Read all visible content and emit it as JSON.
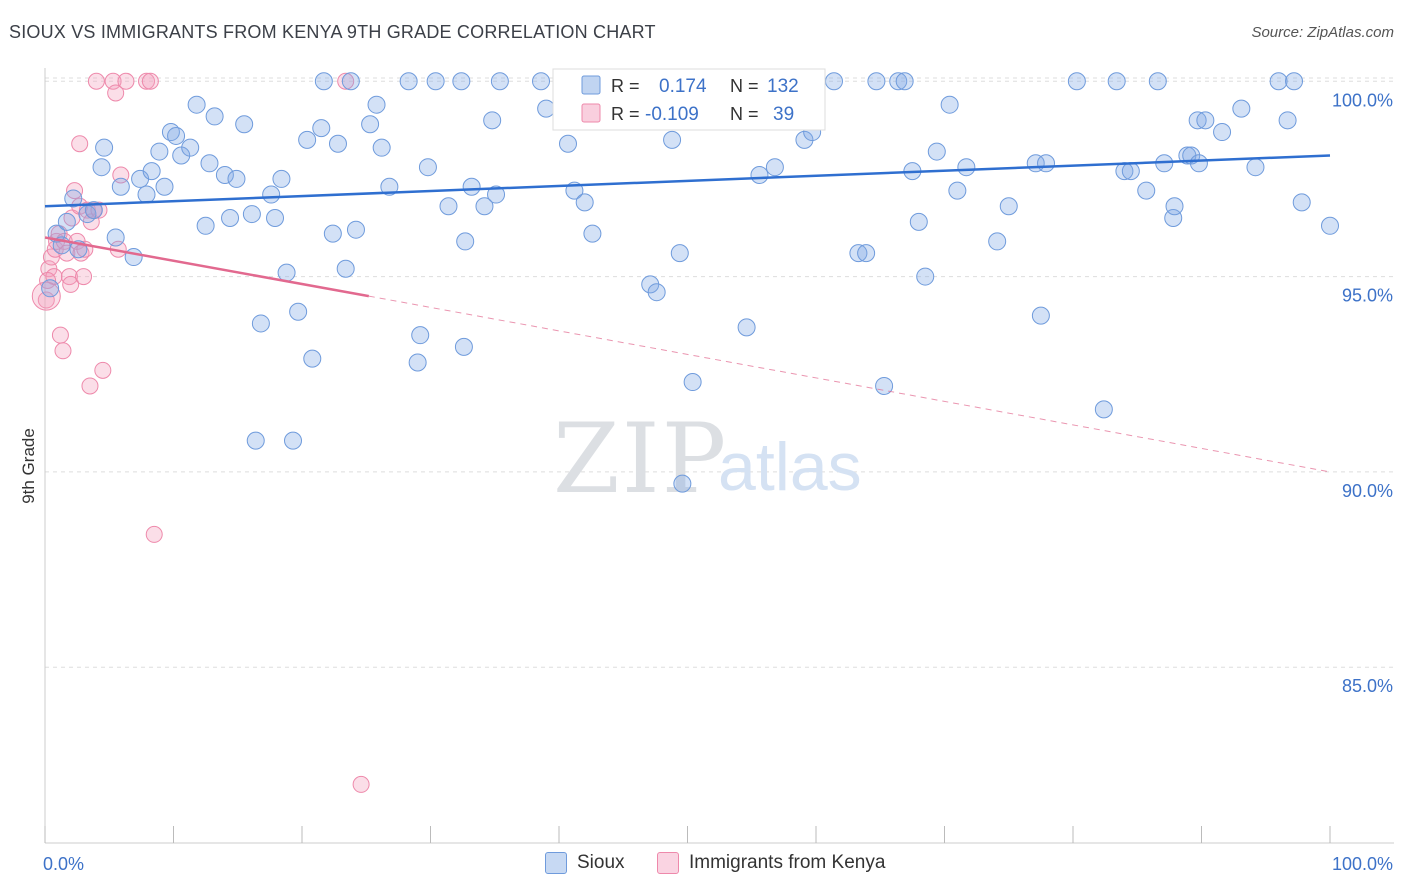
{
  "title": "SIOUX VS IMMIGRANTS FROM KENYA 9TH GRADE CORRELATION CHART",
  "source": "Source: ZipAtlas.com",
  "watermark": {
    "zip": "ZIP",
    "atlas": "atlas"
  },
  "colors": {
    "sioux_fill": "rgba(130,170,228,0.35)",
    "sioux_stroke": "#6f9bdc",
    "sioux_line": "#2f6fd0",
    "kenya_fill": "rgba(244,160,190,0.35)",
    "kenya_stroke": "#ee89ab",
    "kenya_line": "#e2698f",
    "axis_text": "#3d72c8",
    "grid": "#dddddd"
  },
  "legend_top": {
    "rows": [
      {
        "r_label": "R =",
        "r_value": "0.174",
        "n_label": "N =",
        "n_value": "132"
      },
      {
        "r_label": "R =",
        "r_value": "-0.109",
        "n_label": "N =",
        "n_value": "39"
      }
    ]
  },
  "legend_bottom": {
    "sioux": "Sioux",
    "kenya": "Immigrants from Kenya"
  },
  "chart_data": {
    "type": "scatter",
    "xlabel": "",
    "ylabel": "9th Grade",
    "xlim": [
      0,
      100
    ],
    "ylim": [
      80.5,
      100.8
    ],
    "x_tick_labels": [
      "0.0%",
      "100.0%"
    ],
    "y_ticks": [
      85,
      90,
      95,
      100
    ],
    "y_tick_labels": [
      "85.0%",
      "90.0%",
      "95.0%",
      "100.0%"
    ],
    "series": [
      {
        "name": "Sioux",
        "r": 0.174,
        "n": 132,
        "trend": {
          "x": [
            0,
            100
          ],
          "y": [
            96.8,
            98.1
          ]
        },
        "points": [
          [
            0.4,
            94.7
          ],
          [
            0.9,
            96.1
          ],
          [
            1.3,
            95.8
          ],
          [
            1.7,
            96.4
          ],
          [
            2.2,
            97.0
          ],
          [
            2.6,
            95.7
          ],
          [
            3.3,
            96.6
          ],
          [
            3.8,
            96.7
          ],
          [
            4.6,
            98.3
          ],
          [
            4.4,
            97.8
          ],
          [
            5.5,
            96.0
          ],
          [
            5.9,
            97.3
          ],
          [
            6.9,
            95.5
          ],
          [
            7.4,
            97.5
          ],
          [
            7.9,
            97.1
          ],
          [
            8.3,
            97.7
          ],
          [
            8.9,
            98.2
          ],
          [
            9.3,
            97.3
          ],
          [
            9.8,
            98.7
          ],
          [
            10.2,
            98.6
          ],
          [
            10.6,
            98.1
          ],
          [
            11.3,
            98.3
          ],
          [
            11.8,
            99.4
          ],
          [
            12.5,
            96.3
          ],
          [
            12.8,
            97.9
          ],
          [
            13.2,
            99.1
          ],
          [
            14.0,
            97.6
          ],
          [
            14.4,
            96.5
          ],
          [
            14.9,
            97.5
          ],
          [
            15.5,
            98.9
          ],
          [
            16.1,
            96.6
          ],
          [
            16.4,
            90.8
          ],
          [
            16.8,
            93.8
          ],
          [
            17.6,
            97.1
          ],
          [
            17.9,
            96.5
          ],
          [
            18.4,
            97.5
          ],
          [
            18.8,
            95.1
          ],
          [
            19.3,
            90.8
          ],
          [
            19.7,
            94.1
          ],
          [
            20.4,
            98.5
          ],
          [
            20.8,
            92.9
          ],
          [
            21.5,
            98.8
          ],
          [
            21.7,
            100.0
          ],
          [
            22.4,
            96.1
          ],
          [
            22.8,
            98.4
          ],
          [
            23.4,
            95.2
          ],
          [
            23.8,
            100.0
          ],
          [
            24.2,
            96.2
          ],
          [
            25.3,
            98.9
          ],
          [
            25.8,
            99.4
          ],
          [
            26.2,
            98.3
          ],
          [
            26.8,
            97.3
          ],
          [
            28.3,
            100.0
          ],
          [
            29.0,
            92.8
          ],
          [
            29.2,
            93.5
          ],
          [
            29.8,
            97.8
          ],
          [
            30.4,
            100.0
          ],
          [
            31.4,
            96.8
          ],
          [
            32.4,
            100.0
          ],
          [
            32.6,
            93.2
          ],
          [
            32.7,
            95.9
          ],
          [
            33.2,
            97.3
          ],
          [
            34.2,
            96.8
          ],
          [
            34.8,
            99.0
          ],
          [
            35.1,
            97.1
          ],
          [
            35.4,
            100.0
          ],
          [
            38.6,
            100.0
          ],
          [
            39.0,
            99.3
          ],
          [
            40.7,
            98.4
          ],
          [
            41.2,
            97.2
          ],
          [
            42.0,
            96.9
          ],
          [
            42.6,
            96.1
          ],
          [
            44.8,
            100.0
          ],
          [
            47.1,
            94.8
          ],
          [
            47.6,
            94.6
          ],
          [
            48.2,
            100.0
          ],
          [
            48.8,
            98.5
          ],
          [
            49.4,
            95.6
          ],
          [
            49.6,
            89.7
          ],
          [
            50.4,
            92.3
          ],
          [
            51.5,
            100.0
          ],
          [
            54.6,
            93.7
          ],
          [
            55.0,
            100.0
          ],
          [
            55.6,
            97.6
          ],
          [
            56.2,
            100.0
          ],
          [
            56.8,
            97.8
          ],
          [
            59.1,
            98.5
          ],
          [
            59.7,
            98.7
          ],
          [
            61.4,
            100.0
          ],
          [
            63.3,
            95.6
          ],
          [
            63.9,
            95.6
          ],
          [
            64.7,
            100.0
          ],
          [
            65.3,
            92.2
          ],
          [
            66.4,
            100.0
          ],
          [
            66.9,
            100.0
          ],
          [
            67.5,
            97.7
          ],
          [
            68.0,
            96.4
          ],
          [
            68.5,
            95.0
          ],
          [
            69.4,
            98.2
          ],
          [
            70.4,
            99.4
          ],
          [
            71.0,
            97.2
          ],
          [
            71.7,
            97.8
          ],
          [
            74.1,
            95.9
          ],
          [
            75.0,
            96.8
          ],
          [
            77.1,
            97.9
          ],
          [
            77.5,
            94.0
          ],
          [
            77.9,
            97.9
          ],
          [
            80.3,
            100.0
          ],
          [
            82.4,
            91.6
          ],
          [
            83.4,
            100.0
          ],
          [
            84.0,
            97.7
          ],
          [
            84.5,
            97.7
          ],
          [
            85.7,
            97.2
          ],
          [
            86.6,
            100.0
          ],
          [
            87.1,
            97.9
          ],
          [
            87.8,
            96.5
          ],
          [
            87.9,
            96.8
          ],
          [
            88.9,
            98.1
          ],
          [
            89.2,
            98.1
          ],
          [
            89.7,
            99.0
          ],
          [
            89.8,
            97.9
          ],
          [
            90.3,
            99.0
          ],
          [
            91.6,
            98.7
          ],
          [
            93.1,
            99.3
          ],
          [
            94.2,
            97.8
          ],
          [
            96.0,
            100.0
          ],
          [
            96.7,
            99.0
          ],
          [
            97.2,
            100.0
          ],
          [
            97.8,
            96.9
          ],
          [
            100.0,
            96.3
          ]
        ]
      },
      {
        "name": "Immigrants from Kenya",
        "r": -0.109,
        "n": 39,
        "trend": {
          "x": [
            0,
            25.2
          ],
          "y": [
            96.0,
            94.5
          ]
        },
        "trend_dashed": {
          "x": [
            25.2,
            100
          ],
          "y": [
            94.5,
            90.0
          ]
        },
        "points": [
          [
            0.1,
            94.4
          ],
          [
            0.3,
            95.2
          ],
          [
            0.5,
            95.5
          ],
          [
            0.7,
            95.0
          ],
          [
            0.8,
            95.7
          ],
          [
            0.9,
            95.9
          ],
          [
            1.1,
            96.1
          ],
          [
            1.2,
            93.5
          ],
          [
            1.4,
            93.1
          ],
          [
            1.5,
            95.9
          ],
          [
            1.7,
            95.6
          ],
          [
            1.9,
            95.0
          ],
          [
            2.0,
            94.8
          ],
          [
            2.1,
            96.5
          ],
          [
            2.3,
            97.2
          ],
          [
            2.5,
            95.9
          ],
          [
            2.7,
            96.8
          ],
          [
            2.7,
            98.4
          ],
          [
            2.8,
            95.6
          ],
          [
            3.0,
            95.0
          ],
          [
            3.1,
            95.7
          ],
          [
            3.3,
            96.7
          ],
          [
            3.6,
            96.4
          ],
          [
            3.5,
            92.2
          ],
          [
            3.8,
            96.7
          ],
          [
            4.0,
            100.0
          ],
          [
            4.2,
            96.7
          ],
          [
            4.5,
            92.6
          ],
          [
            5.3,
            100.0
          ],
          [
            5.5,
            99.7
          ],
          [
            5.9,
            97.6
          ],
          [
            5.7,
            95.7
          ],
          [
            6.3,
            100.0
          ],
          [
            7.9,
            100.0
          ],
          [
            8.2,
            100.0
          ],
          [
            8.5,
            88.4
          ],
          [
            23.4,
            100.0
          ],
          [
            24.6,
            82.0
          ],
          [
            0.2,
            94.9
          ]
        ]
      }
    ]
  }
}
